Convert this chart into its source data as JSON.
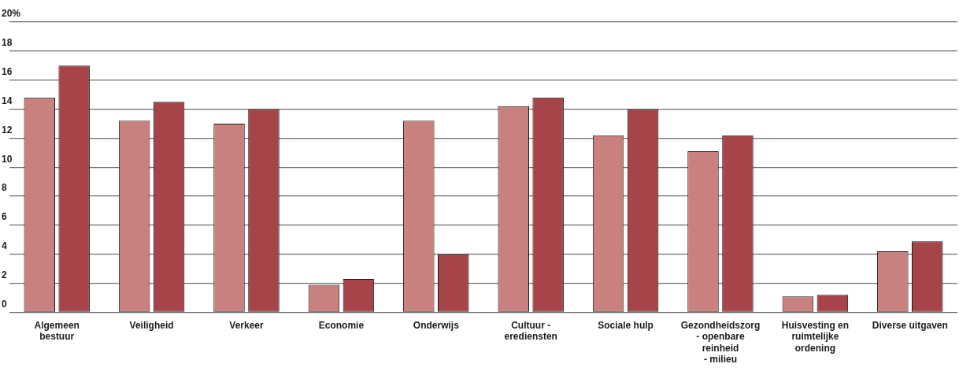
{
  "chart_data": {
    "type": "bar",
    "categories": [
      "Algemeen\nbestuur",
      "Veiligheid",
      "Verkeer",
      "Economie",
      "Onderwijs",
      "Cultuur -\nerediensten",
      "Sociale hulp",
      "Gezondheidszorg\n- openbare\nreinheid\n- milieu",
      "Huisvesting en\nruimtelijke\nordening",
      "Diverse uitgaven"
    ],
    "series": [
      {
        "color": "#c8817e",
        "values": [
          14.8,
          13.2,
          13.0,
          1.9,
          13.2,
          14.2,
          12.2,
          11.1,
          1.1,
          4.2
        ]
      },
      {
        "color": "#a6444a",
        "values": [
          17.0,
          14.5,
          14.0,
          2.3,
          4.0,
          14.8,
          14.0,
          12.2,
          1.2,
          4.9
        ]
      }
    ],
    "ylim": [
      0,
      20
    ],
    "yticks": [
      0,
      2,
      4,
      6,
      8,
      10,
      12,
      14,
      16,
      18,
      {
        "value": 20,
        "label": "20%"
      }
    ],
    "grid": "y",
    "legend": false
  }
}
